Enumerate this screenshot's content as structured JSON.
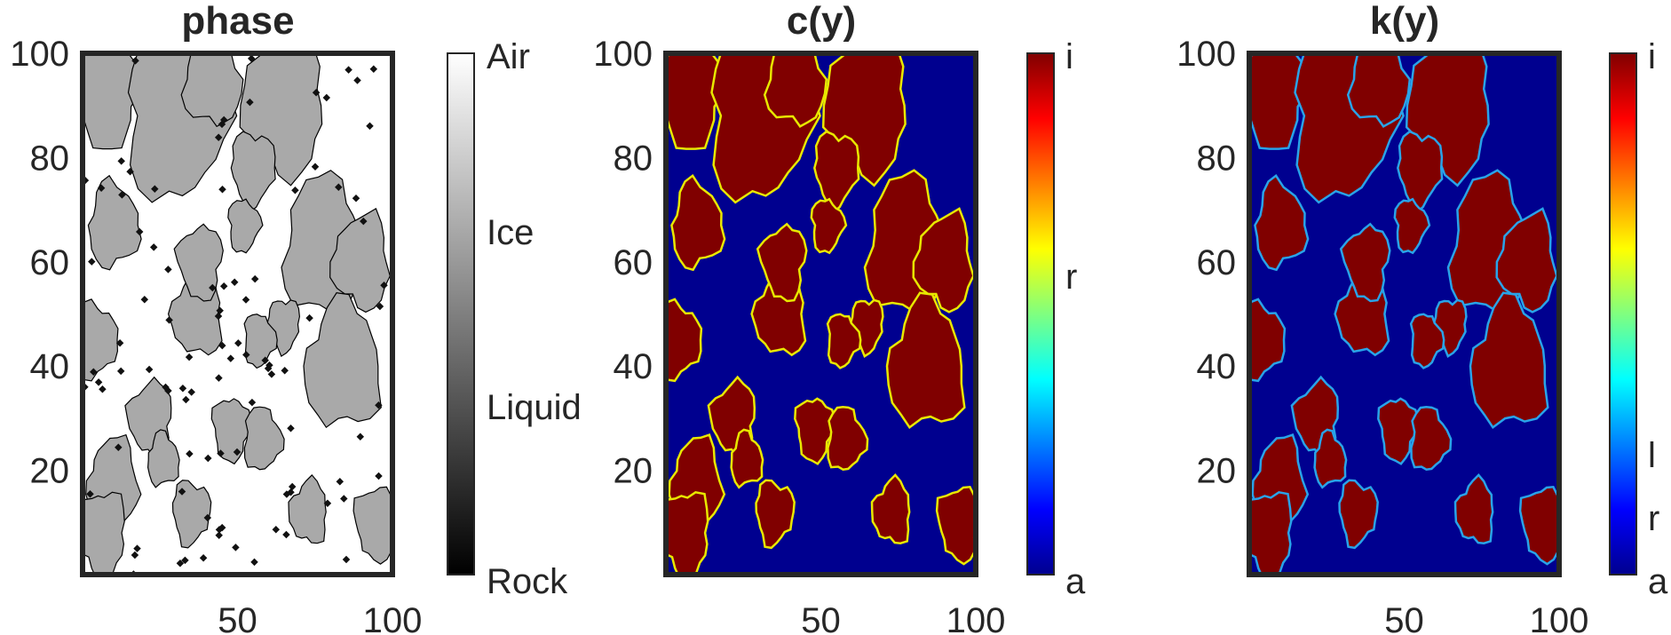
{
  "figure": {
    "panels": [
      {
        "title": "phase",
        "colormap": "gray",
        "colorbar_labels": [
          "Air",
          "Ice",
          "Liquid",
          "Rock"
        ],
        "colors": {
          "background": "#ffffff",
          "fill": "#a9a9a9",
          "speckle": "#111111",
          "outline": "#000000"
        }
      },
      {
        "title": "c(y)",
        "colormap": "jet",
        "colorbar_labels": [
          "i",
          "r",
          "a"
        ],
        "colors": {
          "background": "#00008f",
          "fill": "#800000",
          "outline": "#e8e800"
        }
      },
      {
        "title": "k(y)",
        "colormap": "jet",
        "colorbar_labels": [
          "i",
          "l",
          "r",
          "a"
        ],
        "colors": {
          "background": "#00008f",
          "fill": "#800000",
          "outline": "#29a3e8"
        }
      }
    ]
  },
  "chart_data": {
    "type": "heatmap",
    "xlim": [
      0,
      100
    ],
    "ylim": [
      0,
      100
    ],
    "xticks": [
      50,
      100
    ],
    "yticks": [
      20,
      40,
      60,
      80,
      100
    ],
    "grid": false,
    "legend": "colorbar-right",
    "blobs": [
      {
        "cx": 8,
        "cy": 92,
        "r": 10
      },
      {
        "cx": 30,
        "cy": 88,
        "r": 16
      },
      {
        "cx": 42,
        "cy": 95,
        "r": 9
      },
      {
        "cx": 65,
        "cy": 90,
        "r": 13
      },
      {
        "cx": 55,
        "cy": 78,
        "r": 7
      },
      {
        "cx": 10,
        "cy": 67,
        "r": 8
      },
      {
        "cx": 37,
        "cy": 50,
        "r": 8
      },
      {
        "cx": 38,
        "cy": 60,
        "r": 7
      },
      {
        "cx": 52,
        "cy": 67,
        "r": 5
      },
      {
        "cx": 78,
        "cy": 63,
        "r": 13
      },
      {
        "cx": 90,
        "cy": 60,
        "r": 9
      },
      {
        "cx": 65,
        "cy": 48,
        "r": 5
      },
      {
        "cx": 4,
        "cy": 45,
        "r": 7
      },
      {
        "cx": 84,
        "cy": 40,
        "r": 12
      },
      {
        "cx": 22,
        "cy": 30,
        "r": 7
      },
      {
        "cx": 48,
        "cy": 28,
        "r": 6
      },
      {
        "cx": 58,
        "cy": 26,
        "r": 6
      },
      {
        "cx": 10,
        "cy": 18,
        "r": 8
      },
      {
        "cx": 6,
        "cy": 8,
        "r": 8
      },
      {
        "cx": 35,
        "cy": 12,
        "r": 6
      },
      {
        "cx": 26,
        "cy": 22,
        "r": 5
      },
      {
        "cx": 73,
        "cy": 12,
        "r": 6
      },
      {
        "cx": 95,
        "cy": 10,
        "r": 7
      },
      {
        "cx": 57,
        "cy": 45,
        "r": 5
      }
    ]
  }
}
